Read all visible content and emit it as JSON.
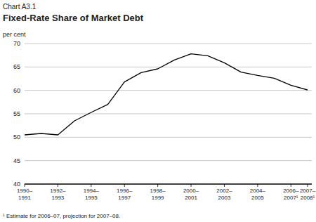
{
  "chart_data": {
    "type": "line",
    "title": "Chart A3.1",
    "subtitle": "Fixed-Rate Share of Market Debt",
    "y_label": "per cent",
    "footnote": "¹ Estimate for 2006–07, projection for 2007–08.",
    "categories": [
      "1990–1991",
      null,
      "1992–1993",
      null,
      "1994–1995",
      null,
      "1996–1997",
      null,
      "1998–1999",
      null,
      "2000–2001",
      null,
      "2002–2003",
      null,
      "2004–2005",
      null,
      "2006–2007¹",
      "2007–2008¹"
    ],
    "values": [
      50.5,
      50.8,
      50.5,
      53.5,
      55.3,
      57.0,
      61.8,
      63.8,
      64.6,
      66.5,
      67.8,
      67.4,
      65.9,
      63.9,
      63.2,
      62.6,
      61.1,
      60.1
    ],
    "color": "#000000",
    "ylim": [
      40,
      70
    ],
    "yticks": [
      40,
      45,
      50,
      55,
      60,
      65,
      70
    ],
    "grid": true
  }
}
